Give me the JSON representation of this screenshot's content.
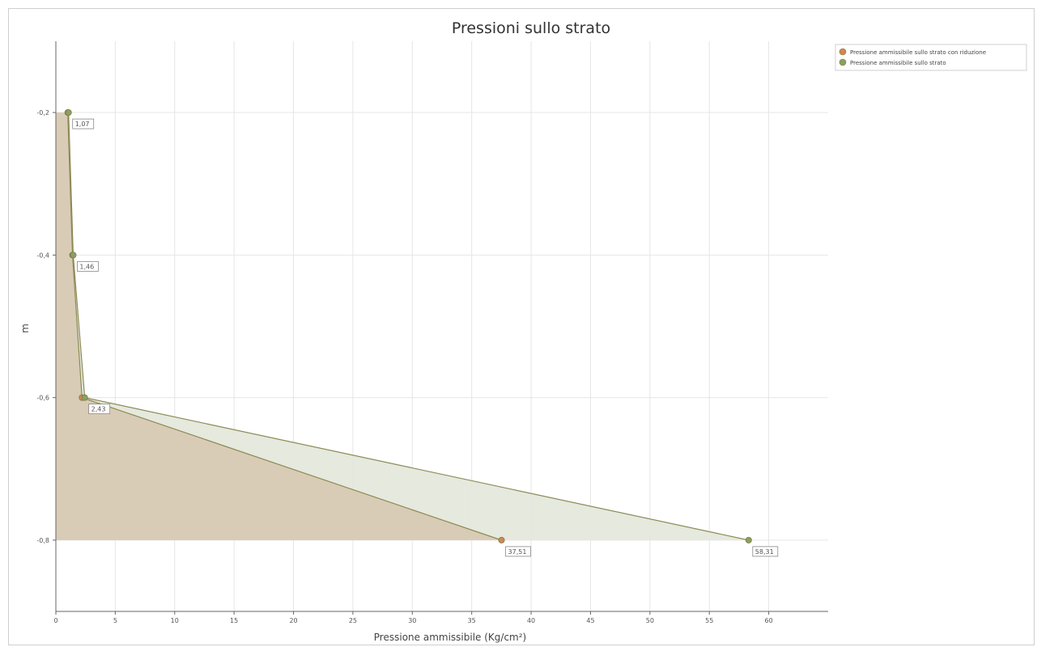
{
  "chart_data": {
    "type": "area",
    "title": "Pressioni sullo strato",
    "xlabel": "Pressione ammissibile (Kg/cm²)",
    "ylabel": "m",
    "xlim": [
      0,
      65
    ],
    "ylim": [
      -0.9,
      -0.1
    ],
    "x_ticks": [
      0,
      5,
      10,
      15,
      20,
      25,
      30,
      35,
      40,
      45,
      50,
      55,
      60
    ],
    "x_tick_labels": [
      "0",
      "5",
      "10",
      "15",
      "20",
      "25",
      "30",
      "35",
      "40",
      "45",
      "50",
      "55",
      "60"
    ],
    "y_ticks": [
      -0.2,
      -0.4,
      -0.6,
      -0.8
    ],
    "y_tick_labels": [
      "-0,2",
      "-0,4",
      "-0,6",
      "-0,8"
    ],
    "grid": true,
    "legend_position": "top-right",
    "series": [
      {
        "name": "Pressione ammissibile sullo strato con riduzione",
        "color": "#d08850",
        "fill": "#d9ccb6",
        "points": [
          {
            "x": 1.0,
            "y": -0.2
          },
          {
            "x": 1.4,
            "y": -0.4
          },
          {
            "x": 2.2,
            "y": -0.6
          },
          {
            "x": 37.51,
            "y": -0.8
          }
        ]
      },
      {
        "name": "Pressione ammissibile sullo strato",
        "color": "#8aa060",
        "fill": "#e4e8dc",
        "points": [
          {
            "x": 1.07,
            "y": -0.2
          },
          {
            "x": 1.46,
            "y": -0.4
          },
          {
            "x": 2.43,
            "y": -0.6
          },
          {
            "x": 58.31,
            "y": -0.8
          }
        ]
      }
    ],
    "data_labels": [
      {
        "text": "1,07",
        "x": 1.07,
        "y": -0.2
      },
      {
        "text": "1,46",
        "x": 1.46,
        "y": -0.4
      },
      {
        "text": "2,43",
        "x": 2.43,
        "y": -0.6
      },
      {
        "text": "37,51",
        "x": 37.51,
        "y": -0.8
      },
      {
        "text": "58,31",
        "x": 58.31,
        "y": -0.8
      }
    ]
  }
}
